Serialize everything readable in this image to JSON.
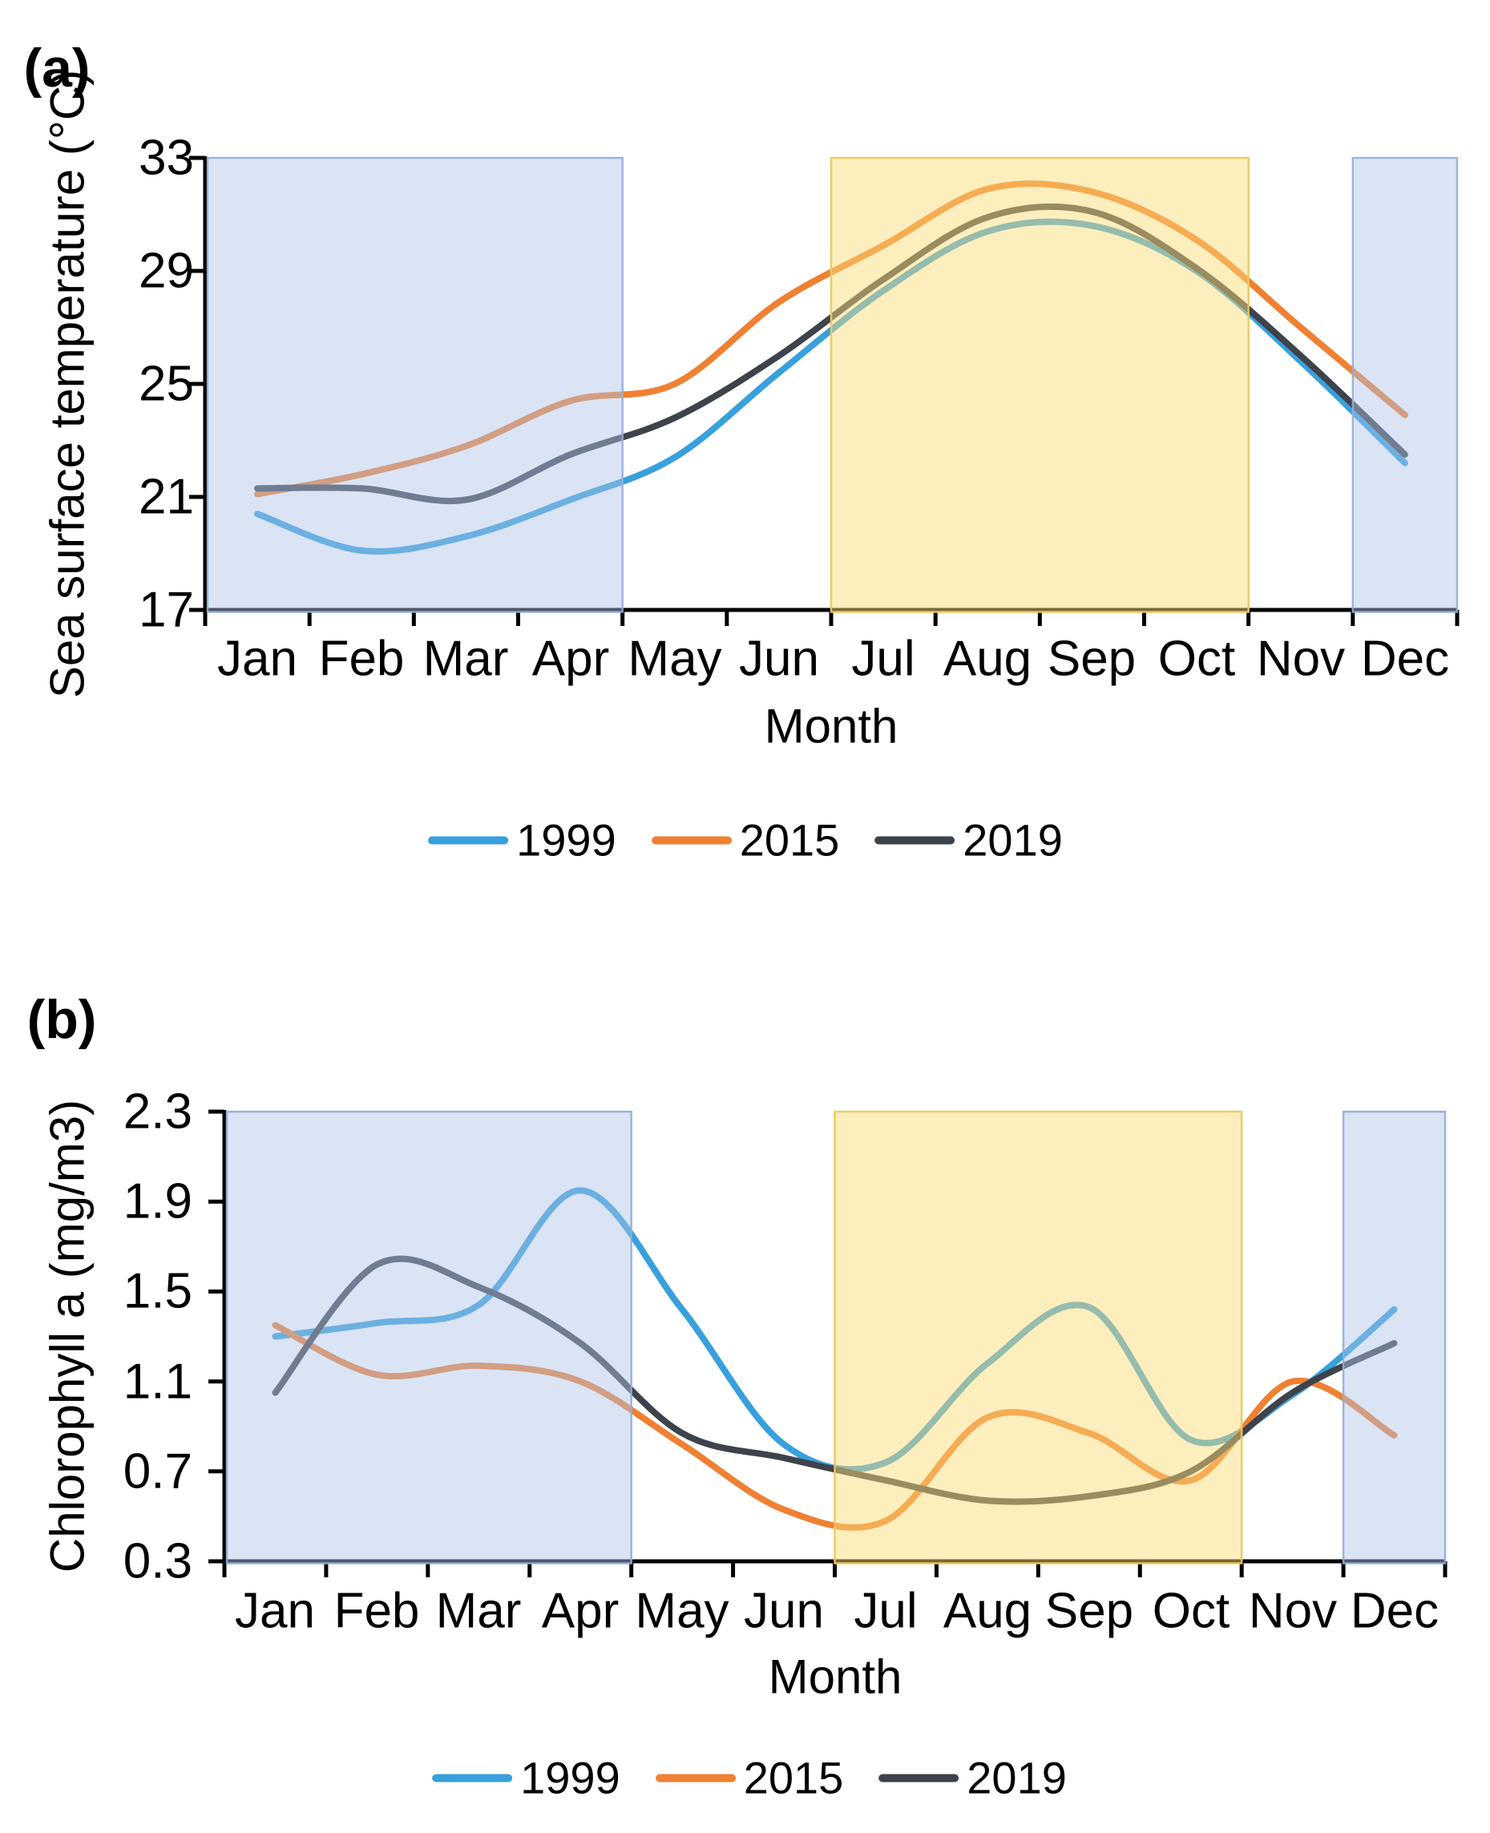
{
  "figure": {
    "panels": [
      {
        "label": "(a)",
        "y_title": "Sea surface temperature (°C)",
        "x_title": "Month"
      },
      {
        "label": "(b)",
        "y_title": "Chlorophyll a (mg/m3)",
        "x_title": "Month"
      }
    ],
    "colors": {
      "series_1999": "#38A0DC",
      "series_2015": "#F08032",
      "series_2019": "#3E434B",
      "axis": "#000000",
      "region_blue_fill": "rgba(174,196,231,0.45)",
      "region_blue_border": "rgba(148,172,214,0.9)",
      "region_yellow_fill": "rgba(250,219,120,0.48)",
      "region_yellow_border": "rgba(236,200,92,0.95)"
    }
  },
  "chart_data": [
    {
      "type": "line",
      "title": "(a)",
      "xlabel": "Month",
      "ylabel": "Sea surface temperature (°C)",
      "categories": [
        "Jan",
        "Feb",
        "Mar",
        "Apr",
        "May",
        "Jun",
        "Jul",
        "Aug",
        "Sep",
        "Oct",
        "Nov",
        "Dec"
      ],
      "ylim": [
        17,
        33
      ],
      "yticks": [
        33,
        29,
        25,
        21,
        17
      ],
      "grid": false,
      "legend_position": "bottom",
      "series": [
        {
          "name": "1999",
          "color": "#38A0DC",
          "values": [
            20.4,
            19.1,
            19.6,
            20.9,
            22.4,
            25.4,
            28.3,
            30.4,
            30.6,
            29.0,
            25.8,
            22.2
          ]
        },
        {
          "name": "2015",
          "color": "#F08032",
          "values": [
            21.1,
            21.8,
            22.8,
            24.4,
            25.0,
            27.9,
            29.9,
            31.9,
            31.8,
            30.1,
            27.0,
            23.9
          ]
        },
        {
          "name": "2019",
          "color": "#3E434B",
          "values": [
            21.3,
            21.3,
            20.9,
            22.5,
            23.8,
            26.0,
            28.7,
            30.9,
            31.1,
            29.1,
            26.0,
            22.5
          ]
        }
      ],
      "shaded_regions": [
        {
          "months": "Jan-Apr",
          "from": 0,
          "to": 4,
          "style": "blue"
        },
        {
          "months": "Jul-Oct",
          "from": 6,
          "to": 10,
          "style": "yellow"
        },
        {
          "months": "Dec",
          "from": 11,
          "to": 12,
          "style": "blue"
        }
      ]
    },
    {
      "type": "line",
      "title": "(b)",
      "xlabel": "Month",
      "ylabel": "Chlorophyll a (mg/m3)",
      "categories": [
        "Jan",
        "Feb",
        "Mar",
        "Apr",
        "May",
        "Jun",
        "Jul",
        "Aug",
        "Sep",
        "Oct",
        "Nov",
        "Dec"
      ],
      "ylim": [
        0.3,
        2.3
      ],
      "yticks": [
        2.3,
        1.9,
        1.5,
        1.1,
        0.7,
        0.3
      ],
      "grid": false,
      "legend_position": "bottom",
      "series": [
        {
          "name": "1999",
          "color": "#38A0DC",
          "values": [
            1.3,
            1.36,
            1.44,
            1.95,
            1.42,
            0.82,
            0.74,
            1.18,
            1.43,
            0.84,
            1.04,
            1.42
          ]
        },
        {
          "name": "2015",
          "color": "#F08032",
          "values": [
            1.35,
            1.13,
            1.17,
            1.1,
            0.82,
            0.53,
            0.48,
            0.94,
            0.87,
            0.66,
            1.1,
            0.86
          ]
        },
        {
          "name": "2019",
          "color": "#3E434B",
          "values": [
            1.05,
            1.62,
            1.52,
            1.27,
            0.87,
            0.76,
            0.66,
            0.57,
            0.59,
            0.7,
            1.05,
            1.27
          ]
        }
      ],
      "shaded_regions": [
        {
          "months": "Jan-Apr",
          "from": 0,
          "to": 4,
          "style": "blue"
        },
        {
          "months": "Jul-Oct",
          "from": 6,
          "to": 10,
          "style": "yellow"
        },
        {
          "months": "Dec",
          "from": 11,
          "to": 12,
          "style": "blue"
        }
      ]
    }
  ]
}
